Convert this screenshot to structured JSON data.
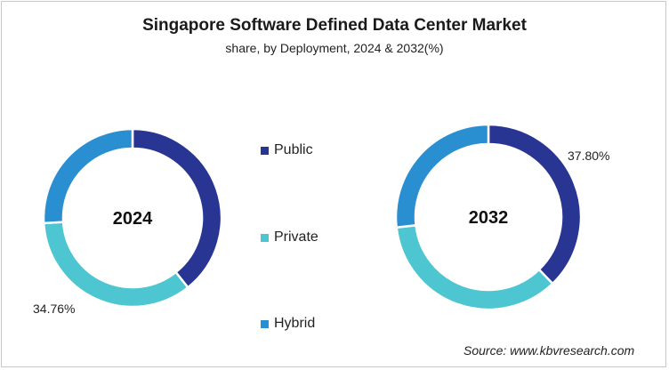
{
  "chart_data": {
    "type": "pie",
    "title": "Singapore Software Defined Data Center Market",
    "subtitle": "share, by Deployment, 2024 & 2032(%)",
    "categories": [
      "Public",
      "Private",
      "Hybrid"
    ],
    "colors": {
      "Public": "#283593",
      "Private": "#4ec6d1",
      "Hybrid": "#2a8fd1"
    },
    "donut": true,
    "legend_position": "center",
    "charts": [
      {
        "center_label": "2024",
        "values": [
          39.3,
          34.76,
          25.94
        ],
        "data_labels": [
          {
            "category": "Private",
            "text": "34.76%"
          }
        ]
      },
      {
        "center_label": "2032",
        "values": [
          37.8,
          35.4,
          26.8
        ],
        "data_labels": [
          {
            "category": "Public",
            "text": "37.80%"
          }
        ]
      }
    ],
    "source": "Source: www.kbvresearch.com"
  }
}
